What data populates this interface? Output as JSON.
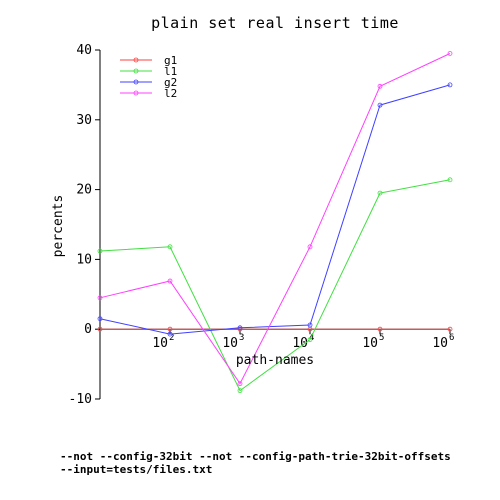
{
  "chart_data": {
    "type": "line",
    "title": "plain set real insert time",
    "xlabel": "path-names",
    "ylabel": "percents",
    "x_scale": "log",
    "xlim": [
      10,
      1000000
    ],
    "ylim": [
      -10,
      40
    ],
    "y_ticks": [
      "-10",
      "0",
      "10",
      "20",
      "30",
      "40"
    ],
    "x_ticks": [
      {
        "base": "10",
        "exp": "2",
        "value": 100
      },
      {
        "base": "10",
        "exp": "3",
        "value": 1000
      },
      {
        "base": "10",
        "exp": "4",
        "value": 10000
      },
      {
        "base": "10",
        "exp": "5",
        "value": 100000
      },
      {
        "base": "10",
        "exp": "6",
        "value": 1000000
      }
    ],
    "legend_position": "top-left",
    "x": [
      10,
      100,
      1000,
      10000,
      100000,
      1000000
    ],
    "series": [
      {
        "name": "g1",
        "color": "#ff4040",
        "values": [
          0,
          0,
          0,
          0,
          0,
          0
        ]
      },
      {
        "name": "l1",
        "color": "#40e040",
        "values": [
          11.2,
          11.8,
          -8.8,
          -1.5,
          19.5,
          21.4
        ]
      },
      {
        "name": "g2",
        "color": "#4040ff",
        "values": [
          1.5,
          -0.7,
          0.2,
          0.6,
          32.1,
          35.0
        ]
      },
      {
        "name": "l2",
        "color": "#ff40ff",
        "values": [
          4.5,
          6.9,
          -7.8,
          11.8,
          34.8,
          39.5
        ]
      }
    ]
  },
  "footnotes": [
    "--not --config-32bit --not --config-path-trie-32bit-offsets",
    "--input=tests/files.txt"
  ]
}
